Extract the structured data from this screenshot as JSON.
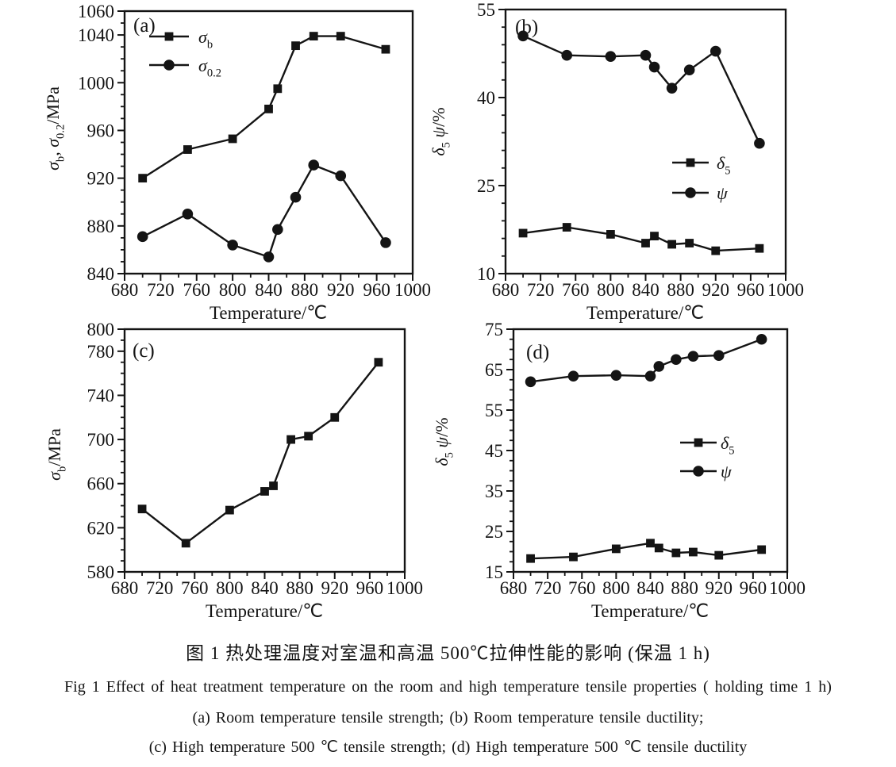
{
  "colors": {
    "ink": "#141414",
    "background": "#ffffff"
  },
  "caption": {
    "line_cn": "图 1  热处理温度对室温和高温 500℃拉伸性能的影响 (保温 1 h)",
    "line_en": "Fig 1   Effect of heat treatment temperature on the room and high temperature tensile properties ( holding time 1 h)",
    "line_sub1": "(a) Room temperature tensile strength;  (b) Room temperature tensile ductility;",
    "line_sub2": "(c) High temperature 500 ℃ tensile strength;  (d) High temperature 500 ℃ tensile ductility"
  },
  "chart_data": [
    {
      "id": "a",
      "type": "line",
      "panel_label": "(a)",
      "xlabel": "Temperature/℃",
      "ylabel_text": "σb, σ0.2/MPa",
      "ylabel_parts": [
        {
          "t": "σ",
          "it": true
        },
        {
          "t": "b",
          "sub": true
        },
        {
          "t": ", "
        },
        {
          "t": "σ",
          "it": true
        },
        {
          "t": "0.2",
          "sub": true
        },
        {
          "t": "/MPa"
        }
      ],
      "x_axis": {
        "min": 680,
        "max": 1000,
        "major_ticks": [
          680,
          720,
          760,
          800,
          840,
          880,
          920,
          960,
          1000
        ],
        "minor_step": 20
      },
      "y_axis": {
        "min": 840,
        "max": 1060,
        "major_ticks": [
          840,
          880,
          920,
          960,
          1000,
          1040,
          1060
        ],
        "minor_step": 10
      },
      "legend_pos": "top-left",
      "series": [
        {
          "name": "sigma-b",
          "marker": "square",
          "label_text": "σb",
          "label_parts": [
            {
              "t": "σ",
              "it": true
            },
            {
              "t": "b",
              "sub": true
            }
          ],
          "x": [
            700,
            750,
            800,
            840,
            850,
            870,
            890,
            920,
            970
          ],
          "y": [
            920,
            944,
            953,
            978,
            995,
            1031,
            1039,
            1039,
            1028
          ]
        },
        {
          "name": "sigma-02",
          "marker": "circle",
          "label_text": "σ0.2",
          "label_parts": [
            {
              "t": "σ",
              "it": true
            },
            {
              "t": "0.2",
              "sub": true
            }
          ],
          "x": [
            700,
            750,
            800,
            840,
            850,
            870,
            890,
            920,
            970
          ],
          "y": [
            871,
            890,
            864,
            854,
            877,
            904,
            931,
            922,
            866
          ]
        }
      ]
    },
    {
      "id": "b",
      "type": "line",
      "panel_label": "(b)",
      "xlabel": "Temperature/℃",
      "ylabel_text": "δ5 ψ/%",
      "ylabel_parts": [
        {
          "t": "δ",
          "it": true
        },
        {
          "t": "5",
          "sub": true
        },
        {
          "t": " "
        },
        {
          "t": "ψ",
          "it": true
        },
        {
          "t": "/%"
        }
      ],
      "x_axis": {
        "min": 680,
        "max": 1000,
        "major_ticks": [
          680,
          720,
          760,
          800,
          840,
          880,
          920,
          960,
          1000
        ],
        "minor_step": 20
      },
      "y_axis": {
        "min": 10,
        "max": 55,
        "major_ticks": [
          10,
          25,
          40,
          55
        ],
        "minor_step": 3
      },
      "legend_pos": "middle-right",
      "series": [
        {
          "name": "delta-5",
          "marker": "square",
          "label_text": "δ5",
          "label_parts": [
            {
              "t": "δ",
              "it": true
            },
            {
              "t": "5",
              "sub": true
            }
          ],
          "x": [
            700,
            750,
            800,
            840,
            850,
            870,
            890,
            920,
            970
          ],
          "y": [
            16.9,
            17.9,
            16.7,
            15.2,
            16.4,
            15.0,
            15.2,
            13.9,
            14.3
          ]
        },
        {
          "name": "psi",
          "marker": "circle",
          "label_text": "ψ",
          "label_parts": [
            {
              "t": "ψ",
              "it": true
            }
          ],
          "x": [
            700,
            750,
            800,
            840,
            850,
            870,
            890,
            920,
            970
          ],
          "y": [
            50.5,
            47.2,
            47.0,
            47.2,
            45.2,
            41.6,
            44.7,
            47.9,
            32.2
          ]
        }
      ]
    },
    {
      "id": "c",
      "type": "line",
      "panel_label": "(c)",
      "xlabel": "Temperature/℃",
      "ylabel_text": "σb/MPa",
      "ylabel_parts": [
        {
          "t": "σ",
          "it": true
        },
        {
          "t": "b",
          "sub": true
        },
        {
          "t": "/MPa"
        }
      ],
      "x_axis": {
        "min": 680,
        "max": 1000,
        "major_ticks": [
          680,
          720,
          760,
          800,
          840,
          880,
          920,
          960,
          1000
        ],
        "minor_step": 20
      },
      "y_axis": {
        "min": 580,
        "max": 800,
        "major_ticks": [
          580,
          620,
          660,
          700,
          740,
          780,
          800
        ],
        "minor_step": 10
      },
      "legend_pos": "none",
      "series": [
        {
          "name": "sigma-b",
          "marker": "square",
          "label_text": "σb",
          "label_parts": [
            {
              "t": "σ",
              "it": true
            },
            {
              "t": "b",
              "sub": true
            }
          ],
          "x": [
            700,
            750,
            800,
            840,
            850,
            870,
            890,
            920,
            970
          ],
          "y": [
            637,
            606,
            636,
            653,
            658,
            700,
            703,
            720,
            770
          ]
        }
      ]
    },
    {
      "id": "d",
      "type": "line",
      "panel_label": "(d)",
      "xlabel": "Temperature/℃",
      "ylabel_text": "δ5 ψ/%",
      "ylabel_parts": [
        {
          "t": "δ",
          "it": true
        },
        {
          "t": "5",
          "sub": true
        },
        {
          "t": " "
        },
        {
          "t": "ψ",
          "it": true
        },
        {
          "t": "/%"
        }
      ],
      "x_axis": {
        "min": 680,
        "max": 1000,
        "major_ticks": [
          680,
          720,
          760,
          800,
          840,
          880,
          920,
          960,
          1000
        ],
        "minor_step": 20
      },
      "y_axis": {
        "min": 15,
        "max": 75,
        "major_ticks": [
          15,
          25,
          35,
          45,
          55,
          65,
          75
        ],
        "minor_step": 2.5
      },
      "legend_pos": "middle-right",
      "series": [
        {
          "name": "delta-5",
          "marker": "square",
          "label_text": "δ5",
          "label_parts": [
            {
              "t": "δ",
              "it": true
            },
            {
              "t": "5",
              "sub": true
            }
          ],
          "x": [
            700,
            750,
            800,
            840,
            850,
            870,
            890,
            920,
            970
          ],
          "y": [
            18.3,
            18.7,
            20.7,
            22.1,
            20.9,
            19.7,
            19.9,
            19.1,
            20.5
          ]
        },
        {
          "name": "psi",
          "marker": "circle",
          "label_text": "ψ",
          "label_parts": [
            {
              "t": "ψ",
              "it": true
            }
          ],
          "x": [
            700,
            750,
            800,
            840,
            850,
            870,
            890,
            920,
            970
          ],
          "y": [
            62.0,
            63.4,
            63.6,
            63.4,
            65.8,
            67.5,
            68.3,
            68.5,
            72.5
          ]
        }
      ]
    }
  ]
}
